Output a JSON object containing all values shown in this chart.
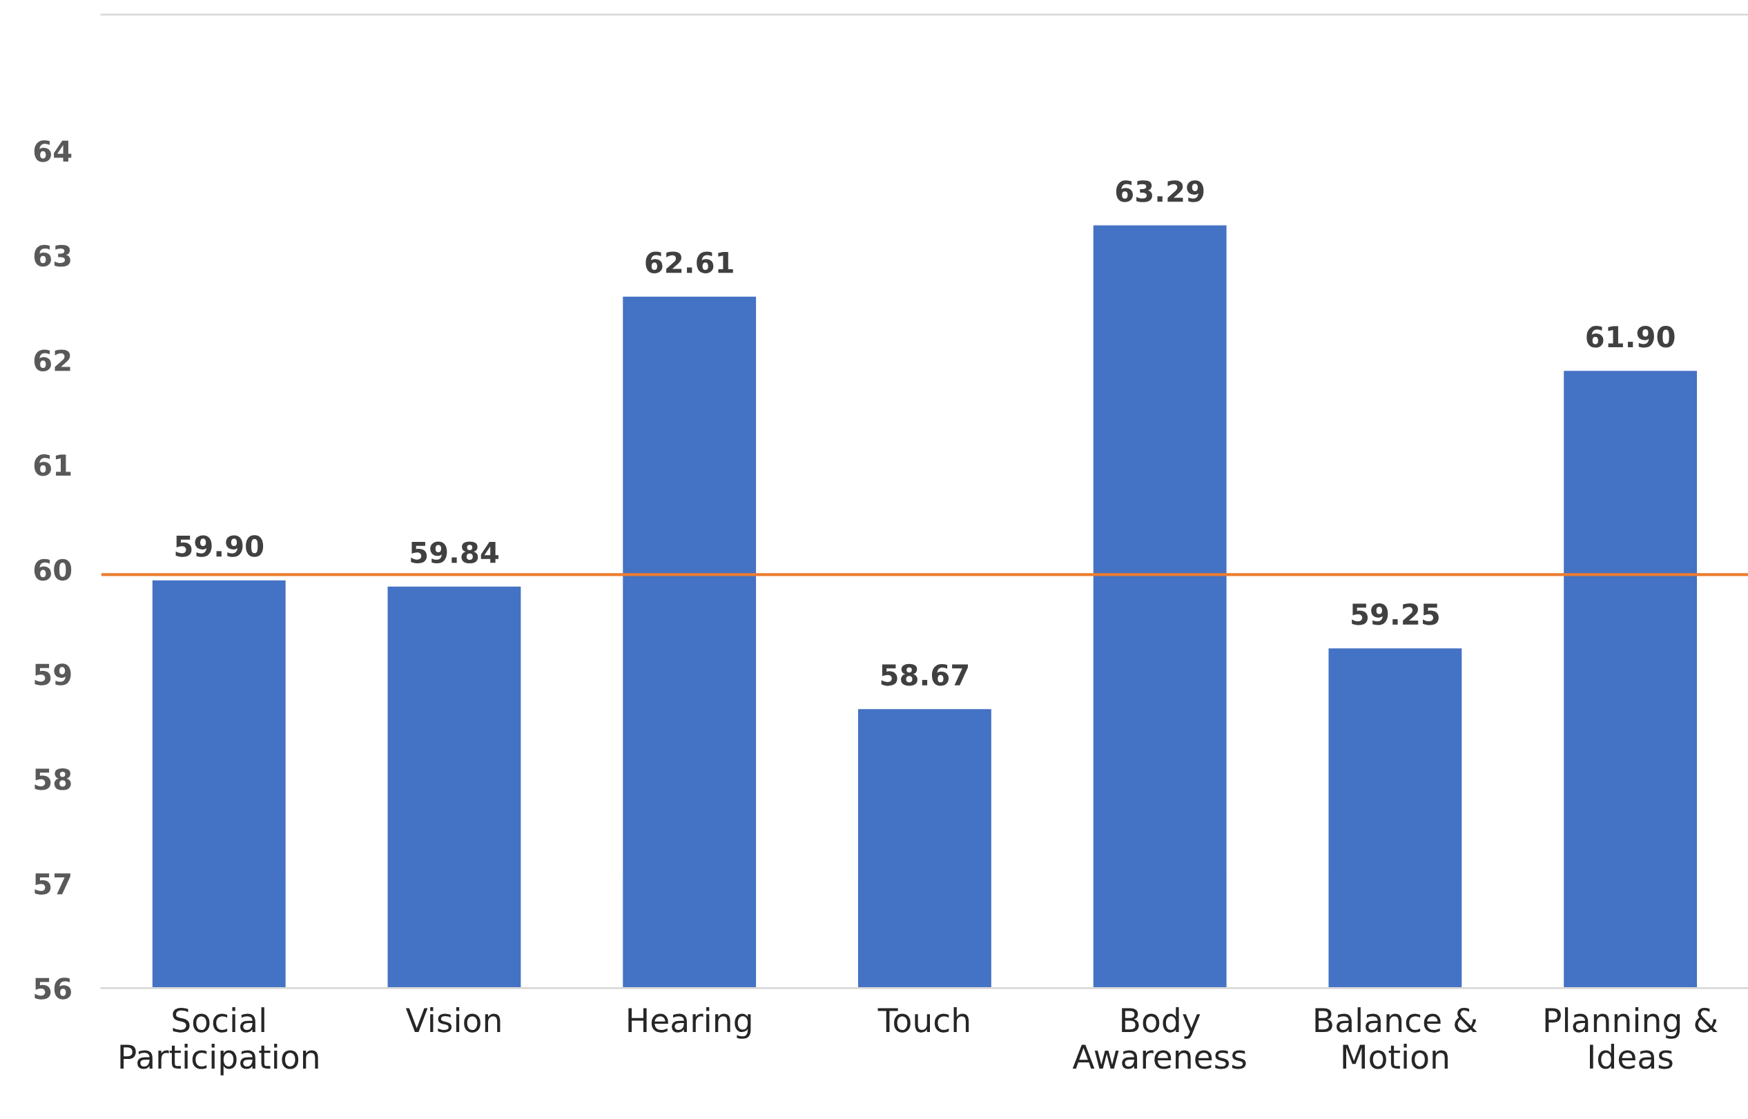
{
  "chart_data": {
    "type": "bar",
    "categories": [
      "Social\nParticipation",
      "Vision",
      "Hearing",
      "Touch",
      "Body\nAwareness",
      "Balance &\nMotion",
      "Planning &\nIdeas"
    ],
    "values": [
      59.9,
      59.84,
      62.61,
      58.67,
      63.29,
      59.25,
      61.9
    ],
    "value_labels": [
      "59.90",
      "59.84",
      "62.61",
      "58.67",
      "63.29",
      "59.25",
      "61.90"
    ],
    "color": "#4472c4",
    "ylim": [
      56,
      65.3
    ],
    "yticks": [
      56,
      57,
      58,
      59,
      60,
      61,
      62,
      63,
      64
    ],
    "ref_lines": [
      {
        "axis": "y",
        "value": 59.95,
        "color": "#ed7d31",
        "line_style": "solid"
      }
    ],
    "grid": false,
    "legend": false
  }
}
